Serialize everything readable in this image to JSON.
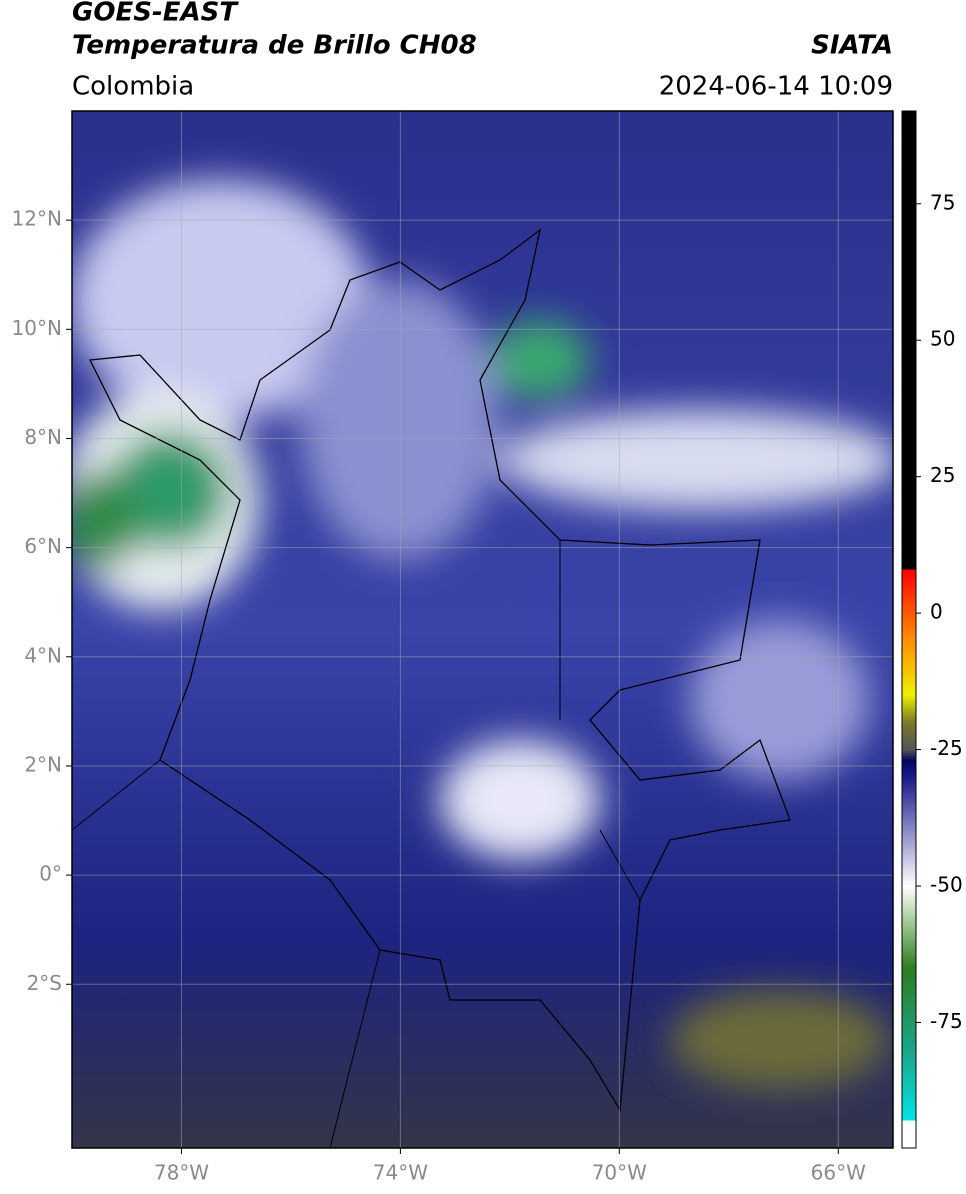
{
  "header": {
    "satellite": "GOES-EAST",
    "product": "Temperatura de Brillo CH08",
    "source": "SIATA",
    "region": "Colombia",
    "datetime": "2024-06-14 10:09"
  },
  "map": {
    "type": "map",
    "xlim": [
      -80,
      -65
    ],
    "ylim": [
      -5,
      14
    ],
    "grid": true,
    "xticks": [
      {
        "value": -78,
        "label": "78°W"
      },
      {
        "value": -74,
        "label": "74°W"
      },
      {
        "value": -70,
        "label": "70°W"
      },
      {
        "value": -66,
        "label": "66°W"
      }
    ],
    "yticks": [
      {
        "value": -2,
        "label": "2°S"
      },
      {
        "value": 0,
        "label": "0°"
      },
      {
        "value": 2,
        "label": "2°N"
      },
      {
        "value": 4,
        "label": "4°N"
      },
      {
        "value": 6,
        "label": "6°N"
      },
      {
        "value": 8,
        "label": "8°N"
      },
      {
        "value": 10,
        "label": "10°N"
      },
      {
        "value": 12,
        "label": "12°N"
      }
    ]
  },
  "colorbar": {
    "lim": [
      -98,
      92
    ],
    "ticks": [
      -75,
      -50,
      -25,
      0,
      25,
      50,
      75
    ],
    "colormap": [
      {
        "value": -98,
        "color": "#ffffff"
      },
      {
        "value": -93,
        "color": "#ffffff"
      },
      {
        "value": -93,
        "color": "#00e5e5"
      },
      {
        "value": -80,
        "color": "#1aa58a"
      },
      {
        "value": -65,
        "color": "#2f7d1e"
      },
      {
        "value": -55,
        "color": "#b8d8b0"
      },
      {
        "value": -50,
        "color": "#ffffff"
      },
      {
        "value": -40,
        "color": "#8a8cc8"
      },
      {
        "value": -30,
        "color": "#1a1a8a"
      },
      {
        "value": -27,
        "color": "#050560"
      },
      {
        "value": -25,
        "color": "#555555"
      },
      {
        "value": -20,
        "color": "#7a7a2a"
      },
      {
        "value": -15,
        "color": "#f0f000"
      },
      {
        "value": -5,
        "color": "#ff9000"
      },
      {
        "value": 8,
        "color": "#ff0000"
      },
      {
        "value": 8,
        "color": "#000000"
      },
      {
        "value": 92,
        "color": "#000000"
      }
    ]
  }
}
